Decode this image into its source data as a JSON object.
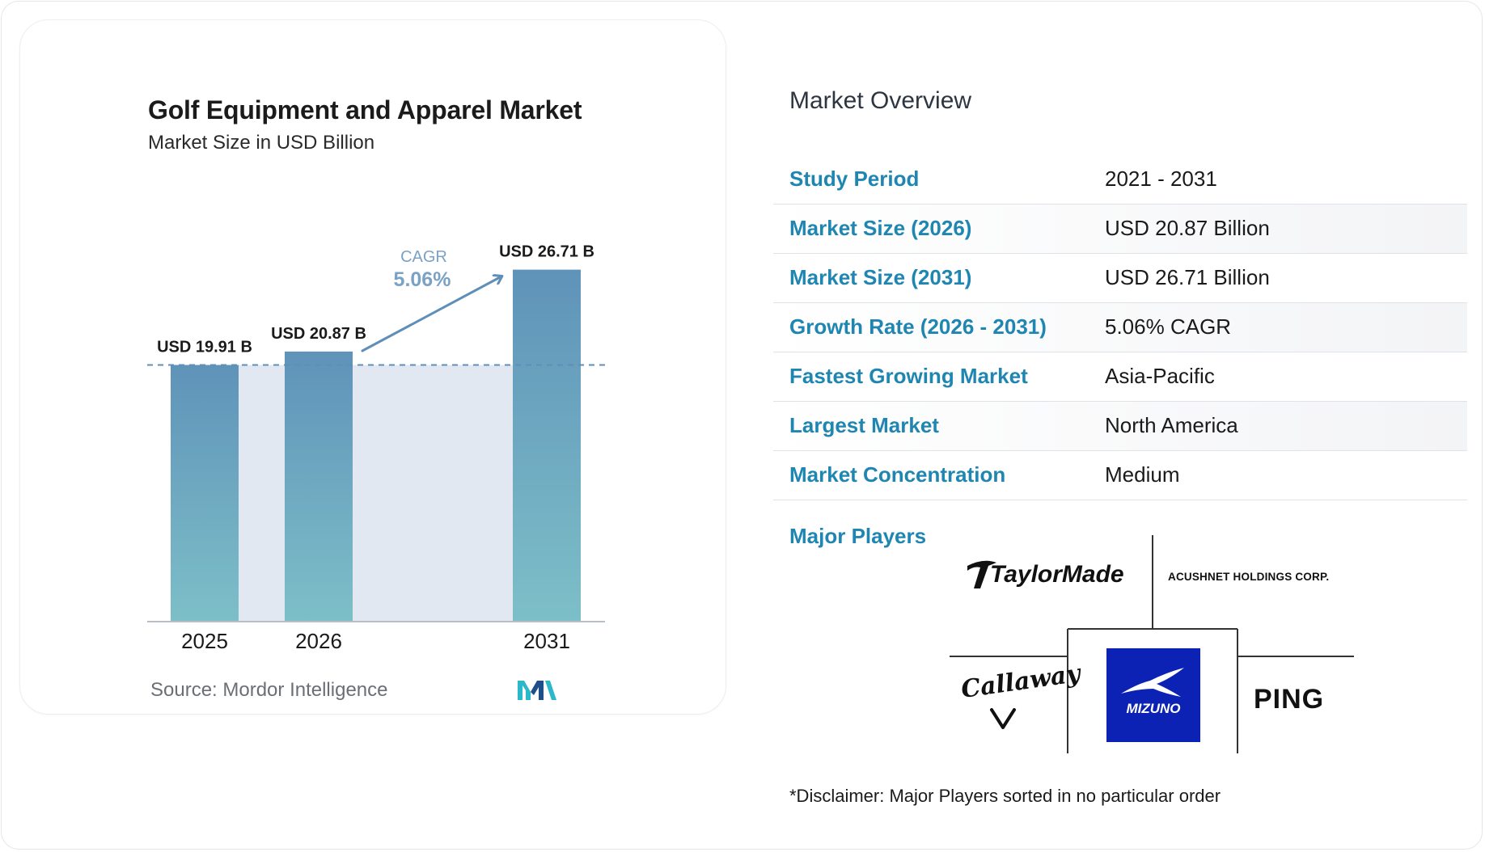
{
  "chart": {
    "title": "Golf Equipment and Apparel Market",
    "subtitle": "Market Size in USD Billion",
    "source": "Source: Mordor Intelligence",
    "cagr_label": "CAGR",
    "cagr_value": "5.06%"
  },
  "chart_data": {
    "type": "bar",
    "title": "Golf Equipment and Apparel Market",
    "subtitle": "Market Size in USD Billion",
    "categories": [
      "2025",
      "2026",
      "2031"
    ],
    "values": [
      19.91,
      20.87,
      26.71
    ],
    "data_labels": [
      "USD 19.91 B",
      "USD 20.87 B",
      "USD 26.71 B"
    ],
    "annotation": {
      "label": "CAGR",
      "value": "5.06%"
    },
    "ylabel": "",
    "xlabel": "",
    "grid": false,
    "colors": {
      "bar_top": "#5f93b9",
      "bar_bottom": "#7dbfc8",
      "band": "#e1e8f1",
      "reference_line": "#5f8fb8",
      "cagr_text": "#7aa2c4",
      "arrow": "#5f8fb8"
    }
  },
  "overview": {
    "title": "Market Overview",
    "rows": [
      {
        "key": "Study Period",
        "value": "2021 - 2031"
      },
      {
        "key": "Market Size (2026)",
        "value": "USD 20.87 Billion"
      },
      {
        "key": "Market Size (2031)",
        "value": "USD 26.71 Billion"
      },
      {
        "key": "Growth Rate (2026 - 2031)",
        "value": "5.06% CAGR"
      },
      {
        "key": "Fastest Growing Market",
        "value": "Asia-Pacific"
      },
      {
        "key": "Largest Market",
        "value": "North America"
      },
      {
        "key": "Market Concentration",
        "value": "Medium"
      }
    ]
  },
  "players": {
    "label": "Major Players",
    "logos": [
      "TaylorMade",
      "ACUSHNET HOLDINGS CORP.",
      "Callaway",
      "MIZUNO",
      "PING"
    ]
  },
  "disclaimer": "*Disclaimer: Major Players sorted in no particular order",
  "colors": {
    "accent": "#1f86b2",
    "mizuno_blue": "#0b22b5"
  }
}
